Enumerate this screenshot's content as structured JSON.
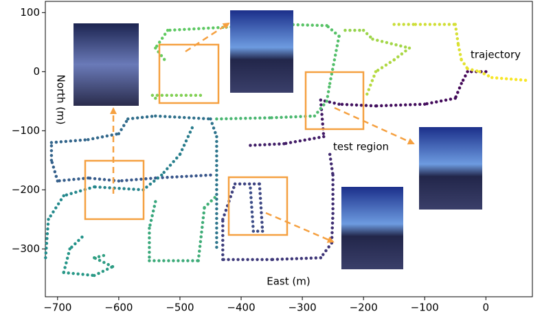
{
  "chart_data": {
    "type": "scatter",
    "xlabel": "East (m)",
    "ylabel": "North (m)",
    "annotations": [
      "trajectory",
      "test region"
    ],
    "xlim": [
      -720,
      76
    ],
    "ylim": [
      -381,
      119
    ],
    "xticks": [
      {
        "value": -700,
        "label": "−700"
      },
      {
        "value": -600,
        "label": "−600"
      },
      {
        "value": -500,
        "label": "−500"
      },
      {
        "value": -400,
        "label": "−400"
      },
      {
        "value": -300,
        "label": "−300"
      },
      {
        "value": -200,
        "label": "−200"
      },
      {
        "value": -100,
        "label": "−100"
      },
      0
    ],
    "yticks": [
      {
        "value": -300,
        "label": "−300"
      },
      {
        "value": -200,
        "label": "−200"
      },
      {
        "value": -100,
        "label": "−100"
      },
      0,
      100
    ],
    "colormap": [
      "#440154",
      "#3b528b",
      "#21918c",
      "#5ec962",
      "#fde725"
    ],
    "x": [
      0,
      -30,
      -40,
      -50,
      -100,
      -180,
      -240,
      -270,
      -265,
      -330,
      -390,
      null,
      -255,
      -250,
      -250,
      -252,
      -270,
      -350,
      -430,
      -430,
      -410,
      -370,
      -365,
      -380,
      -385,
      null,
      -450,
      -540,
      -600,
      -650,
      -700,
      -710,
      -710,
      -650,
      -600,
      -585,
      -540,
      -450,
      -440,
      -440,
      null,
      -480,
      -500,
      -530,
      -560,
      -640,
      -690,
      -715,
      -720,
      null,
      -660,
      -680,
      -690,
      -640,
      -610,
      -640,
      -620,
      null,
      -540,
      -550,
      -550,
      -470,
      -460,
      -440,
      null,
      -440,
      -350,
      -280,
      -260,
      -255,
      -240,
      -260,
      -330,
      -430,
      -520,
      -540,
      -525,
      null,
      -540,
      -545,
      -460,
      null,
      -230,
      -200,
      -185,
      -125,
      -150,
      -180,
      -195,
      null,
      -150,
      -115,
      -50,
      -45,
      -40,
      -30,
      -10,
      10,
      70
    ],
    "y": [
      0,
      0,
      -20,
      -45,
      -55,
      -58,
      -55,
      -48,
      -110,
      -122,
      -125,
      null,
      -140,
      -175,
      -240,
      -290,
      -315,
      -318,
      -318,
      -250,
      -190,
      -190,
      -270,
      -270,
      -195,
      null,
      -175,
      -180,
      -185,
      -180,
      -185,
      -150,
      -120,
      -115,
      -105,
      -80,
      -75,
      -80,
      -110,
      -300,
      null,
      -95,
      -140,
      -175,
      -200,
      -195,
      -210,
      -250,
      -320,
      null,
      -280,
      -300,
      -340,
      -345,
      -330,
      -315,
      -310,
      null,
      -220,
      -265,
      -320,
      -320,
      -230,
      -210,
      null,
      -80,
      -78,
      -75,
      -50,
      -20,
      60,
      78,
      80,
      75,
      70,
      40,
      20,
      null,
      -45,
      -40,
      -40,
      null,
      70,
      70,
      55,
      40,
      20,
      0,
      -40,
      null,
      80,
      80,
      80,
      45,
      20,
      5,
      0,
      -10,
      -15
    ]
  }
}
